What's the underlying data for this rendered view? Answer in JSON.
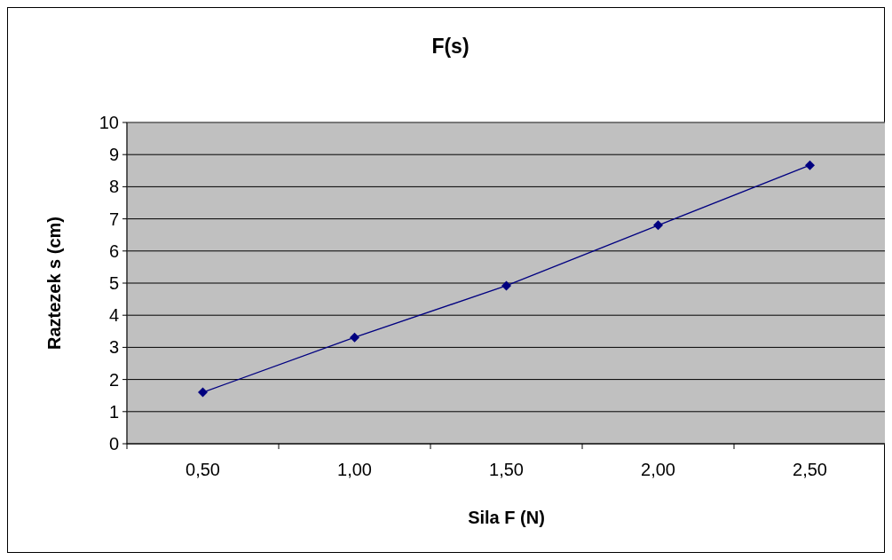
{
  "chart_data": {
    "type": "line",
    "title": "F(s)",
    "xlabel": "Sila F (N)",
    "ylabel": "Raztezek s (cm)",
    "categories": [
      "0,50",
      "1,00",
      "1,50",
      "2,00",
      "2,50"
    ],
    "series": [
      {
        "color": "#000080",
        "values": [
          1.6,
          3.31,
          4.92,
          6.8,
          8.67
        ]
      }
    ],
    "ylim": [
      0,
      10
    ],
    "yticks": [
      0,
      1,
      2,
      3,
      4,
      5,
      6,
      7,
      8,
      9,
      10
    ],
    "grid": "y",
    "marker": "diamond",
    "line_style": "solid"
  }
}
